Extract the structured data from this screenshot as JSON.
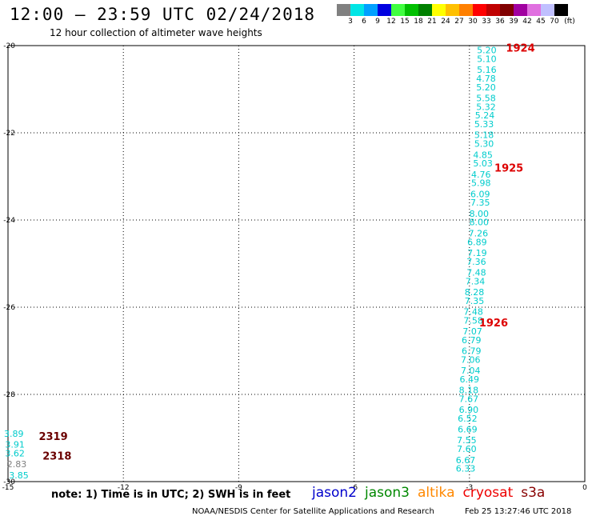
{
  "header": {
    "title": "12:00 – 23:59 UTC 02/24/2018",
    "subtitle": "12 hour collection of altimeter wave heights"
  },
  "colorbar": {
    "unit_label": "(ft)",
    "bins": [
      {
        "label": "3",
        "color": "#808080"
      },
      {
        "label": "6",
        "color": "#00e5e5"
      },
      {
        "label": "9",
        "color": "#00a0ff"
      },
      {
        "label": "12",
        "color": "#0000e0"
      },
      {
        "label": "15",
        "color": "#40ff40"
      },
      {
        "label": "18",
        "color": "#00c000"
      },
      {
        "label": "21",
        "color": "#008000"
      },
      {
        "label": "24",
        "color": "#ffff00"
      },
      {
        "label": "27",
        "color": "#ffc000"
      },
      {
        "label": "30",
        "color": "#ff8000"
      },
      {
        "label": "33",
        "color": "#ff0000"
      },
      {
        "label": "36",
        "color": "#c00000"
      },
      {
        "label": "39",
        "color": "#800000"
      },
      {
        "label": "42",
        "color": "#a000a0"
      },
      {
        "label": "45",
        "color": "#e070e0"
      },
      {
        "label": "70",
        "color": "#c0c0ff"
      },
      {
        "label": "",
        "color": "#000000"
      }
    ]
  },
  "chart_data": {
    "type": "scatter",
    "title": "12:00 – 23:59 UTC 02/24/2018",
    "subtitle": "12 hour collection of altimeter wave heights",
    "xlim": [
      -15,
      0
    ],
    "ylim": [
      -30,
      -20
    ],
    "xticks": [
      "-15",
      "-12",
      "-9",
      "-6",
      "-3",
      "0"
    ],
    "yticks": [
      "-20",
      "-22",
      "-24",
      "-26",
      "-28",
      "-30"
    ],
    "grid": true,
    "labels": [
      {
        "x": -2.55,
        "y": -20.1,
        "text": "5.20",
        "color": "#00cccc"
      },
      {
        "x": -2.55,
        "y": -20.3,
        "text": "5.10",
        "color": "#00cccc"
      },
      {
        "x": -2.55,
        "y": -20.55,
        "text": "5.16",
        "color": "#00cccc"
      },
      {
        "x": -2.57,
        "y": -20.75,
        "text": "4.78",
        "color": "#00cccc"
      },
      {
        "x": -2.57,
        "y": -20.95,
        "text": "5.20",
        "color": "#00cccc"
      },
      {
        "x": -2.57,
        "y": -21.2,
        "text": "5.58",
        "color": "#00cccc"
      },
      {
        "x": -2.57,
        "y": -21.4,
        "text": "5.32",
        "color": "#00cccc"
      },
      {
        "x": -2.6,
        "y": -21.6,
        "text": "5.24",
        "color": "#00cccc"
      },
      {
        "x": -2.62,
        "y": -21.8,
        "text": "5.33",
        "color": "#00cccc"
      },
      {
        "x": -2.62,
        "y": -22.05,
        "text": "5.18",
        "color": "#00cccc"
      },
      {
        "x": -2.62,
        "y": -22.25,
        "text": "5.30",
        "color": "#00cccc"
      },
      {
        "x": -2.65,
        "y": -22.5,
        "text": "4.85",
        "color": "#00cccc"
      },
      {
        "x": -2.65,
        "y": -22.7,
        "text": "5.03",
        "color": "#00cccc"
      },
      {
        "x": -2.7,
        "y": -22.95,
        "text": "4.76",
        "color": "#00cccc"
      },
      {
        "x": -2.7,
        "y": -23.15,
        "text": "5.98",
        "color": "#00cccc"
      },
      {
        "x": -2.72,
        "y": -23.4,
        "text": "6.09",
        "color": "#00cccc"
      },
      {
        "x": -2.72,
        "y": -23.6,
        "text": "7.35",
        "color": "#00cccc"
      },
      {
        "x": -2.75,
        "y": -23.85,
        "text": "8.00",
        "color": "#00cccc"
      },
      {
        "x": -2.75,
        "y": -24.05,
        "text": "8.00",
        "color": "#00cccc"
      },
      {
        "x": -2.77,
        "y": -24.3,
        "text": "7.26",
        "color": "#00cccc"
      },
      {
        "x": -2.8,
        "y": -24.5,
        "text": "6.89",
        "color": "#00cccc"
      },
      {
        "x": -2.8,
        "y": -24.75,
        "text": "7.19",
        "color": "#00cccc"
      },
      {
        "x": -2.82,
        "y": -24.95,
        "text": "7.36",
        "color": "#00cccc"
      },
      {
        "x": -2.82,
        "y": -25.2,
        "text": "7.48",
        "color": "#00cccc"
      },
      {
        "x": -2.85,
        "y": -25.4,
        "text": "7.34",
        "color": "#00cccc"
      },
      {
        "x": -2.87,
        "y": -25.65,
        "text": "8.28",
        "color": "#00cccc"
      },
      {
        "x": -2.87,
        "y": -25.85,
        "text": "7.35",
        "color": "#00cccc"
      },
      {
        "x": -2.9,
        "y": -26.1,
        "text": "7.48",
        "color": "#00cccc"
      },
      {
        "x": -2.9,
        "y": -26.3,
        "text": "7.58",
        "color": "#00cccc"
      },
      {
        "x": -2.92,
        "y": -26.55,
        "text": "7.07",
        "color": "#00cccc"
      },
      {
        "x": -2.95,
        "y": -26.75,
        "text": "6.79",
        "color": "#00cccc"
      },
      {
        "x": -2.95,
        "y": -27.0,
        "text": "6.79",
        "color": "#00cccc"
      },
      {
        "x": -2.97,
        "y": -27.2,
        "text": "7.06",
        "color": "#00cccc"
      },
      {
        "x": -2.97,
        "y": -27.45,
        "text": "7.04",
        "color": "#00cccc"
      },
      {
        "x": -3.0,
        "y": -27.65,
        "text": "6.49",
        "color": "#00cccc"
      },
      {
        "x": -3.02,
        "y": -27.9,
        "text": "8.18",
        "color": "#00cccc"
      },
      {
        "x": -3.02,
        "y": -28.1,
        "text": "7.67",
        "color": "#00cccc"
      },
      {
        "x": -3.02,
        "y": -28.35,
        "text": "6.90",
        "color": "#00cccc"
      },
      {
        "x": -3.05,
        "y": -28.55,
        "text": "6.52",
        "color": "#00cccc"
      },
      {
        "x": -3.05,
        "y": -28.8,
        "text": "6.69",
        "color": "#00cccc"
      },
      {
        "x": -3.07,
        "y": -29.05,
        "text": "7.55",
        "color": "#00cccc"
      },
      {
        "x": -3.07,
        "y": -29.25,
        "text": "7.60",
        "color": "#00cccc"
      },
      {
        "x": -3.1,
        "y": -29.5,
        "text": "6.67",
        "color": "#00cccc"
      },
      {
        "x": -3.1,
        "y": -29.7,
        "text": "6.33",
        "color": "#00cccc"
      },
      {
        "x": -14.85,
        "y": -28.9,
        "text": "3.89",
        "color": "#00cccc"
      },
      {
        "x": -14.82,
        "y": -29.15,
        "text": "3.91",
        "color": "#00cccc"
      },
      {
        "x": -14.82,
        "y": -29.35,
        "text": "3.62",
        "color": "#00cccc"
      },
      {
        "x": -14.77,
        "y": -29.6,
        "text": "2.83",
        "color": "#808080"
      },
      {
        "x": -14.72,
        "y": -29.85,
        "text": "3.85",
        "color": "#00cccc"
      }
    ],
    "annotations": [
      {
        "x": -2.05,
        "y": -20.05,
        "text": "1924",
        "color": "#dd0000"
      },
      {
        "x": -2.35,
        "y": -22.8,
        "text": "1925",
        "color": "#dd0000"
      },
      {
        "x": -2.75,
        "y": -26.35,
        "text": "1926",
        "color": "#dd0000"
      },
      {
        "x": -14.2,
        "y": -28.95,
        "text": "2319",
        "color": "#6a0000"
      },
      {
        "x": -14.1,
        "y": -29.4,
        "text": "2318",
        "color": "#6a0000"
      }
    ]
  },
  "note": "note: 1) Time is in UTC; 2) SWH is in feet",
  "legend": [
    {
      "name": "jason2",
      "color": "#0000cc"
    },
    {
      "name": "jason3",
      "color": "#008800"
    },
    {
      "name": "altika",
      "color": "#ff8800"
    },
    {
      "name": "cryosat",
      "color": "#ee0000"
    },
    {
      "name": "s3a",
      "color": "#880000"
    }
  ],
  "footer": {
    "source": "NOAA/NESDIS Center for Satellite Applications and Research",
    "date": "Feb 25 13:27:46 UTC 2018"
  }
}
